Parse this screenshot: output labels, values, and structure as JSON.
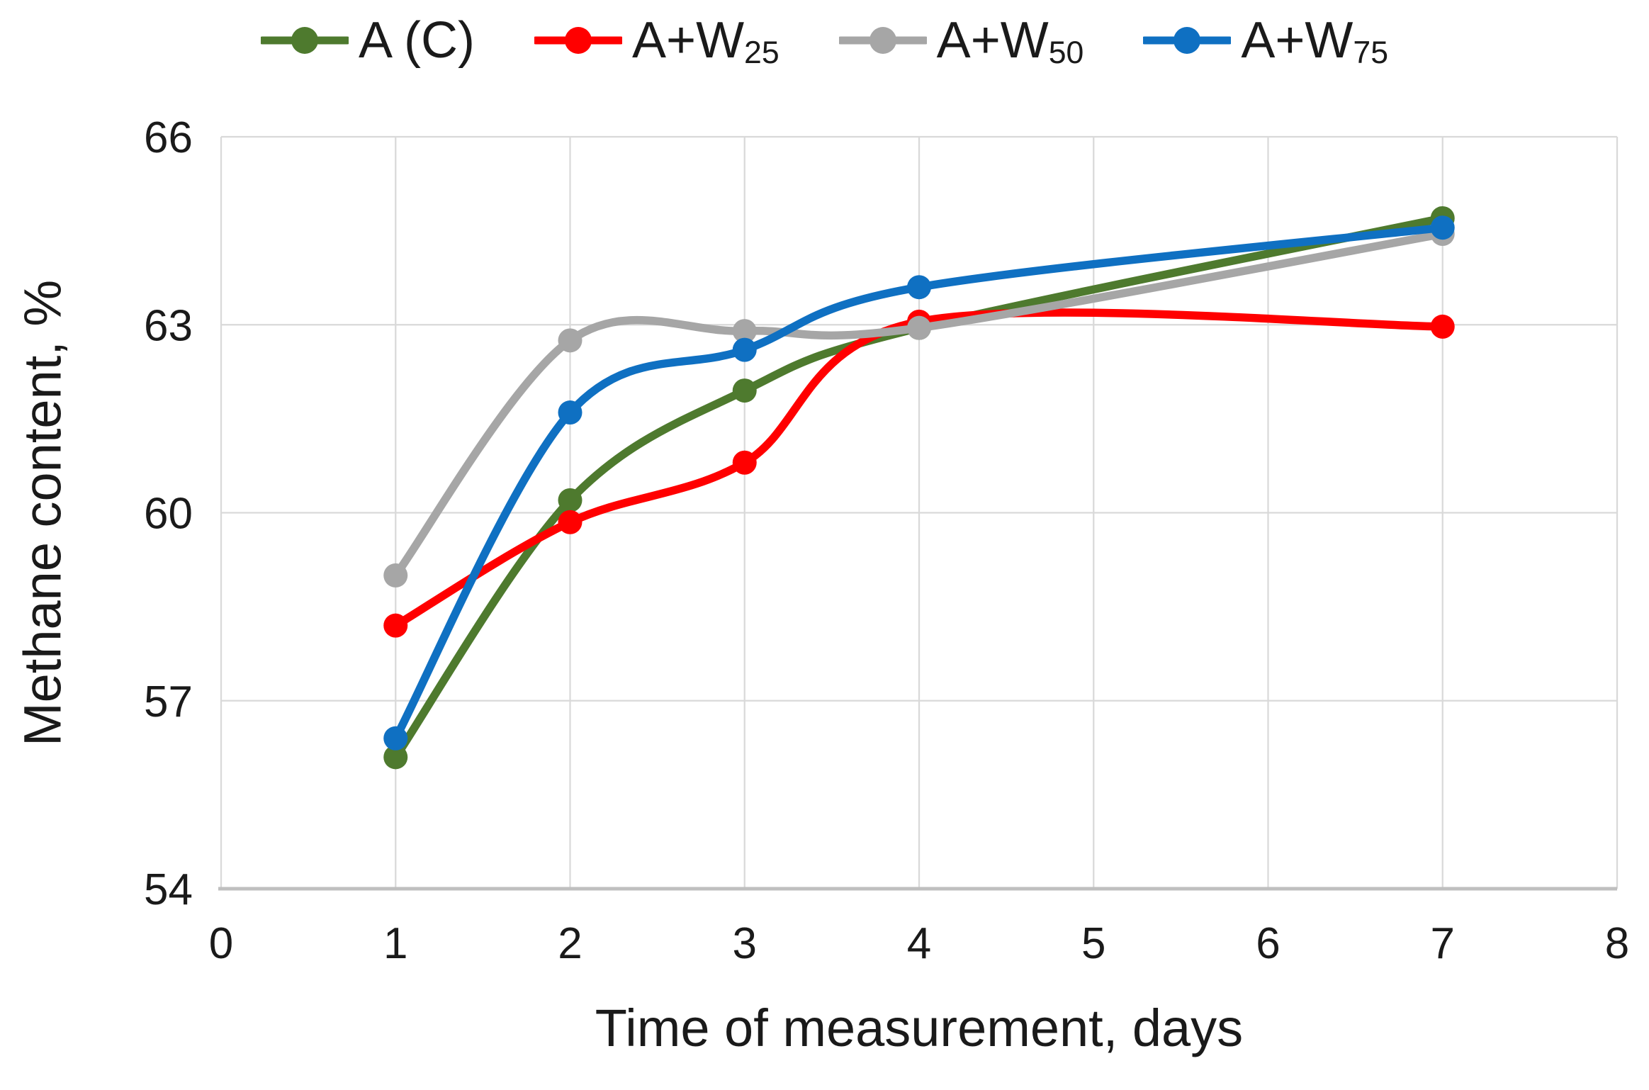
{
  "chart_data": {
    "type": "line",
    "title": "",
    "xlabel": "Time of measurement, days",
    "ylabel": "Methane content, %",
    "xlim": [
      0,
      8
    ],
    "ylim": [
      54,
      66
    ],
    "xticks": [
      0,
      1,
      2,
      3,
      4,
      5,
      6,
      7,
      8
    ],
    "yticks": [
      54,
      57,
      60,
      63,
      66
    ],
    "grid": true,
    "legend_position": "top-center",
    "x": [
      1,
      2,
      3,
      4,
      7
    ],
    "series": [
      {
        "name": "A (C)",
        "label_base": "A (C)",
        "label_sub": "",
        "slug": "a-c",
        "color": "#4E7A2E",
        "values": [
          56.1,
          60.2,
          61.95,
          62.95,
          64.7
        ]
      },
      {
        "name": "A+W25",
        "label_base": "A+W",
        "label_sub": "25",
        "slug": "a-w25",
        "color": "#FF0000",
        "values": [
          58.2,
          59.85,
          60.8,
          63.05,
          62.97
        ]
      },
      {
        "name": "A+W50",
        "label_base": "A+W",
        "label_sub": "50",
        "slug": "a-w50",
        "color": "#A6A6A6",
        "values": [
          59.0,
          62.75,
          62.9,
          62.95,
          64.45
        ]
      },
      {
        "name": "A+W75",
        "label_base": "A+W",
        "label_sub": "75",
        "slug": "a-w75",
        "color": "#0F70C2",
        "values": [
          56.4,
          61.6,
          62.6,
          63.6,
          64.55
        ]
      }
    ],
    "styles": {
      "gridline_color": "#D9D9D9",
      "axis_line_color": "#BFBFBF",
      "text_color": "#1a1a1a",
      "line_width": 11.5,
      "marker_radius": 17,
      "tick_font_size": 62
    }
  }
}
